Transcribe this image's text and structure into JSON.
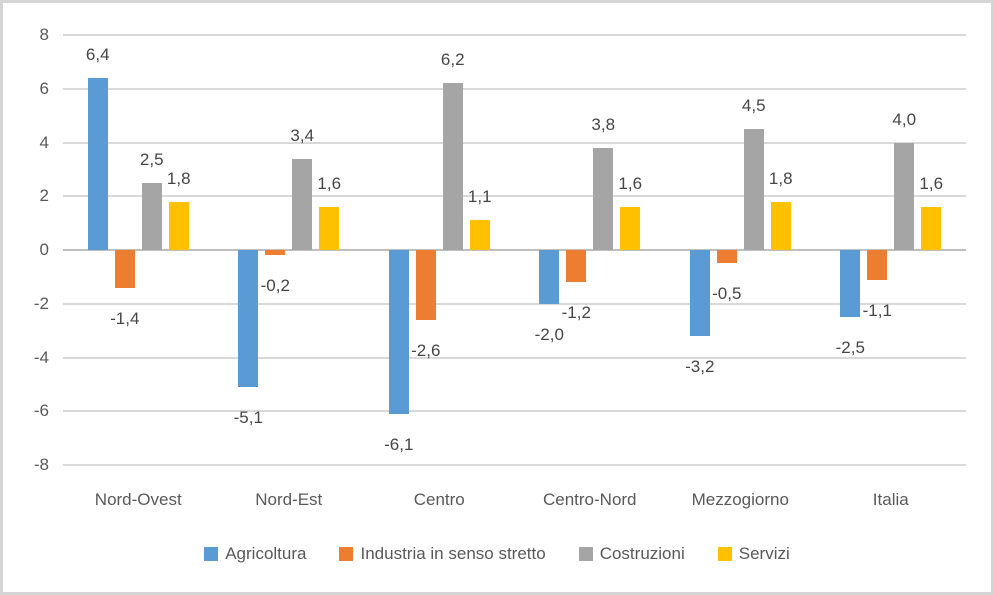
{
  "chart_data": {
    "type": "bar",
    "title": "",
    "categories": [
      "Nord-Ovest",
      "Nord-Est",
      "Centro",
      "Centro-Nord",
      "Mezzogiorno",
      "Italia"
    ],
    "series": [
      {
        "name": "Agricoltura",
        "color": "#5B9BD5",
        "values": [
          6.4,
          -5.1,
          -6.1,
          -2.0,
          -3.2,
          -2.5
        ],
        "labels": [
          "6,4",
          "-5,1",
          "-6,1",
          "-2,0",
          "-3,2",
          "-2,5"
        ]
      },
      {
        "name": "Industria in senso stretto",
        "color": "#ED7D31",
        "values": [
          -1.4,
          -0.2,
          -2.6,
          -1.2,
          -0.5,
          -1.1
        ],
        "labels": [
          "-1,4",
          "-0,2",
          "-2,6",
          "-1,2",
          "-0,5",
          "-1,1"
        ]
      },
      {
        "name": "Costruzioni",
        "color": "#A5A5A5",
        "values": [
          2.5,
          3.4,
          6.2,
          3.8,
          4.5,
          4.0
        ],
        "labels": [
          "2,5",
          "3,4",
          "6,2",
          "3,8",
          "4,5",
          "4,0"
        ]
      },
      {
        "name": "Servizi",
        "color": "#FFC000",
        "values": [
          1.8,
          1.6,
          1.1,
          1.6,
          1.8,
          1.6
        ],
        "labels": [
          "1,8",
          "1,6",
          "1,1",
          "1,6",
          "1,8",
          "1,6"
        ]
      }
    ],
    "y_axis": {
      "min": -8,
      "max": 8,
      "tick_step": 2,
      "tick_labels": [
        "8",
        "6",
        "4",
        "2",
        "0",
        "-2",
        "-4",
        "-6",
        "-8"
      ]
    },
    "grid": true,
    "legend_position": "bottom",
    "decimal_separator": ",",
    "colors": {
      "gridline": "#D9D9D9",
      "zero_line": "#BFBFBF",
      "text": "#595959",
      "frame_border": "#D5D5D5"
    }
  }
}
